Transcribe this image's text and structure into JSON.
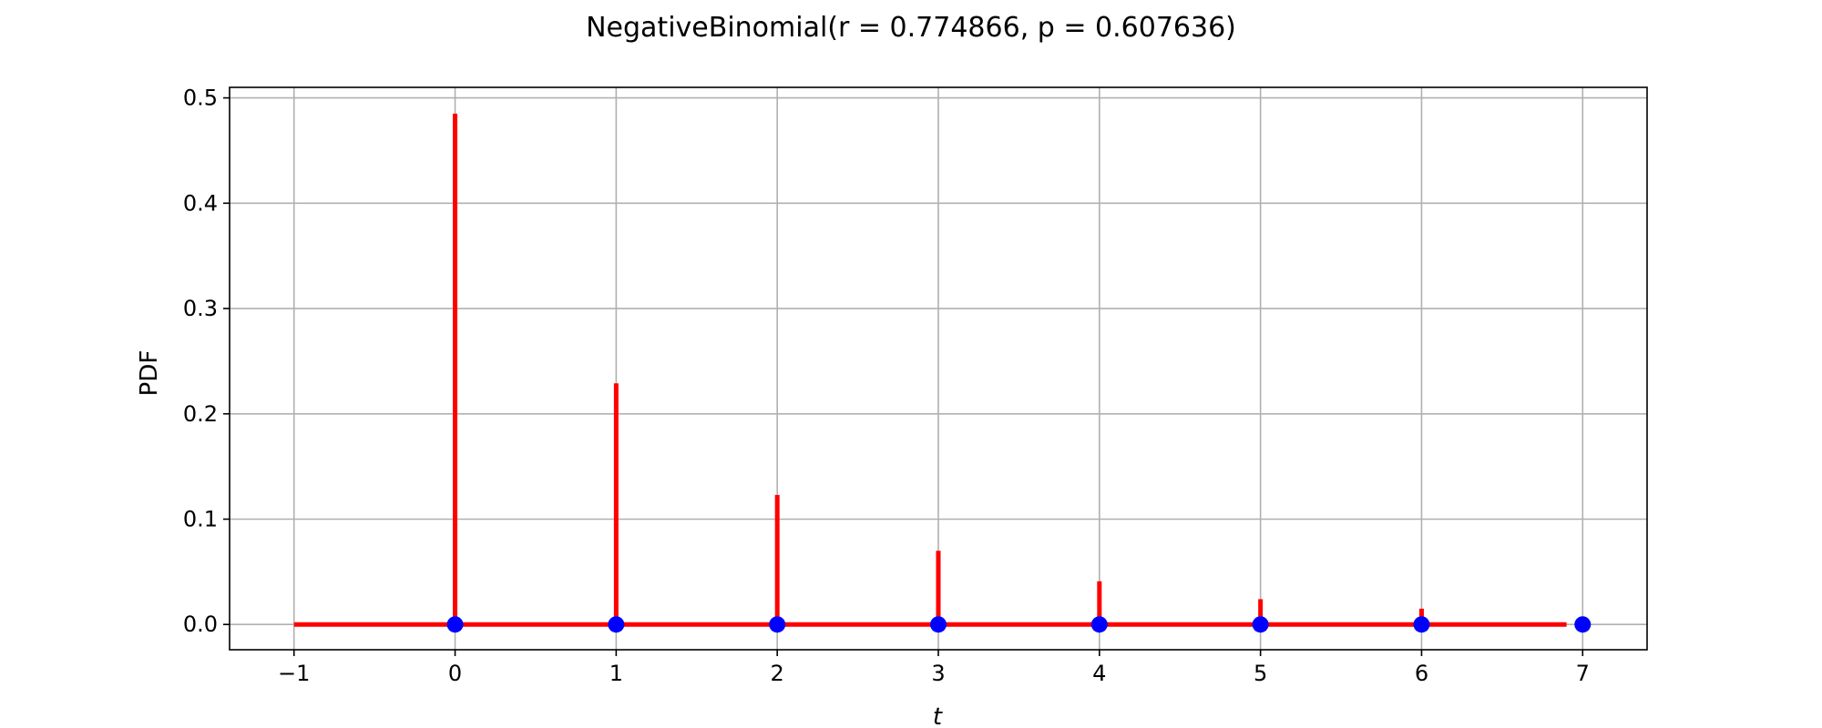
{
  "chart_data": {
    "type": "stem",
    "title": "NegativeBinomial(r = 0.774866, p = 0.607636)",
    "xlabel": "t",
    "ylabel": "PDF",
    "xlim": [
      -1.4,
      7.4
    ],
    "ylim": [
      -0.024,
      0.51
    ],
    "x_ticks": [
      -1,
      0,
      1,
      2,
      3,
      4,
      5,
      6,
      7
    ],
    "x_tick_labels": [
      "−1",
      "0",
      "1",
      "2",
      "3",
      "4",
      "5",
      "6",
      "7"
    ],
    "y_ticks": [
      0.0,
      0.1,
      0.2,
      0.3,
      0.4,
      0.5
    ],
    "y_tick_labels": [
      "0.0",
      "0.1",
      "0.2",
      "0.3",
      "0.4",
      "0.5"
    ],
    "grid": true,
    "pmf": {
      "x": [
        0,
        1,
        2,
        3,
        4,
        5,
        6
      ],
      "values": [
        0.485,
        0.229,
        0.123,
        0.07,
        0.041,
        0.024,
        0.015
      ]
    },
    "baseline_steps": [
      {
        "from": -1,
        "to": 6.9
      }
    ],
    "points": {
      "x": [
        0,
        1,
        2,
        3,
        4,
        5,
        6,
        7
      ],
      "y": [
        0,
        0,
        0,
        0,
        0,
        0,
        0,
        0
      ]
    },
    "colors": {
      "stem": "#ff0000",
      "point": "#0000ff",
      "grid": "#b0b0b0",
      "axes": "#000000"
    }
  }
}
